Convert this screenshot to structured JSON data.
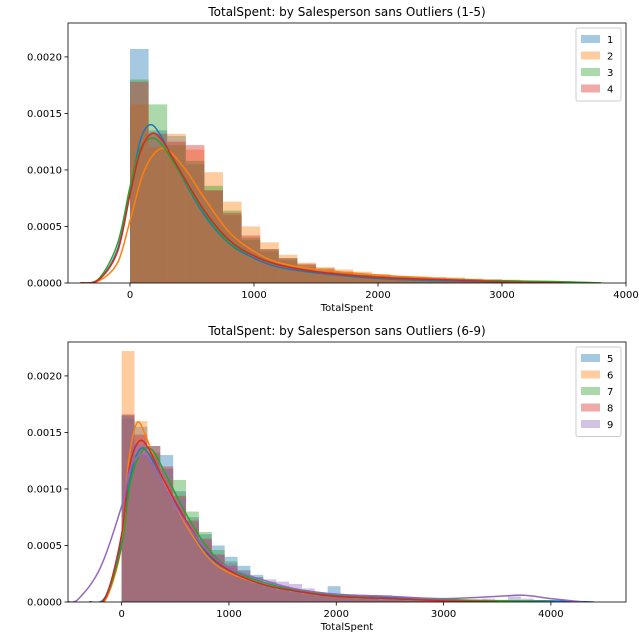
{
  "chart_data": [
    {
      "type": "histogram",
      "title": "TotalSpent: by Salesperson sans Outliers (1-5)",
      "xlabel": "TotalSpent",
      "ylabel": "",
      "xlim": [
        -500,
        4000
      ],
      "ylim": [
        0,
        0.0023
      ],
      "xticks": [
        0,
        1000,
        2000,
        3000,
        4000
      ],
      "yticks": [
        0.0,
        0.0005,
        0.001,
        0.0015,
        0.002
      ],
      "ytick_labels": [
        "0.0000",
        "0.0005",
        "0.0010",
        "0.0015",
        "0.0020"
      ],
      "legend_position": "top-right",
      "grid": false,
      "bin_width": 150,
      "series": [
        {
          "name": "1",
          "color": "#1f77b4",
          "bin_start": 0,
          "densities": [
            0.00207,
            0.00135,
            0.0013,
            0.00105,
            0.00082,
            0.0006,
            0.00038,
            0.00028,
            0.0002,
            0.00014,
            0.0001,
            9e-05,
            7e-05,
            6e-05,
            5e-05,
            5e-05,
            4e-05,
            3e-05,
            3e-05,
            3e-05,
            2e-05,
            2e-05,
            1e-05,
            1e-05
          ],
          "kde": [
            [
              -400,
              0.0
            ],
            [
              -250,
              3e-05
            ],
            [
              -100,
              0.0003
            ],
            [
              0,
              0.0008
            ],
            [
              80,
              0.00125
            ],
            [
              160,
              0.0014
            ],
            [
              250,
              0.0013
            ],
            [
              400,
              0.00098
            ],
            [
              600,
              0.0006
            ],
            [
              800,
              0.00035
            ],
            [
              1000,
              0.00022
            ],
            [
              1200,
              0.00014
            ],
            [
              1500,
              9e-05
            ],
            [
              2000,
              4e-05
            ],
            [
              2500,
              2e-05
            ],
            [
              3000,
              1e-05
            ],
            [
              3500,
              0.0
            ]
          ]
        },
        {
          "name": "2",
          "color": "#ff7f0e",
          "bin_start": 0,
          "densities": [
            0.00158,
            0.0012,
            0.00132,
            0.00118,
            0.00098,
            0.00072,
            0.0005,
            0.00036,
            0.00025,
            0.00018,
            0.00014,
            0.00012,
            0.0001,
            8e-05,
            6e-05,
            6e-05,
            5e-05,
            5e-05,
            4e-05,
            3e-05,
            3e-05,
            2e-05,
            2e-05,
            1e-05
          ],
          "kde": [
            [
              -400,
              0.0
            ],
            [
              -250,
              2e-05
            ],
            [
              -100,
              0.00018
            ],
            [
              0,
              0.00055
            ],
            [
              100,
              0.00095
            ],
            [
              200,
              0.00115
            ],
            [
              300,
              0.00118
            ],
            [
              450,
              0.001
            ],
            [
              600,
              0.00075
            ],
            [
              800,
              0.00045
            ],
            [
              1000,
              0.00028
            ],
            [
              1200,
              0.00018
            ],
            [
              1500,
              0.00012
            ],
            [
              2000,
              7e-05
            ],
            [
              2500,
              4e-05
            ],
            [
              3000,
              2e-05
            ],
            [
              3500,
              1e-05
            ],
            [
              3800,
              0.0
            ]
          ]
        },
        {
          "name": "3",
          "color": "#2ca02c",
          "bin_start": 0,
          "densities": [
            0.0018,
            0.00158,
            0.00122,
            0.00108,
            0.00086,
            0.00064,
            0.0004,
            0.0003,
            0.00022,
            0.00016,
            0.00012,
            0.0001,
            8e-05,
            7e-05,
            6e-05,
            5e-05,
            4e-05,
            4e-05,
            3e-05,
            3e-05,
            2e-05,
            2e-05,
            2e-05,
            1e-05
          ],
          "kde": [
            [
              -400,
              0.0
            ],
            [
              -250,
              4e-05
            ],
            [
              -100,
              0.00035
            ],
            [
              0,
              0.00085
            ],
            [
              80,
              0.00118
            ],
            [
              170,
              0.00128
            ],
            [
              260,
              0.00122
            ],
            [
              400,
              0.00098
            ],
            [
              600,
              0.00062
            ],
            [
              800,
              0.00036
            ],
            [
              1000,
              0.00024
            ],
            [
              1200,
              0.00016
            ],
            [
              1500,
              0.0001
            ],
            [
              2000,
              5e-05
            ],
            [
              2500,
              3e-05
            ],
            [
              3000,
              2e-05
            ],
            [
              3500,
              1e-05
            ],
            [
              3800,
              0.0
            ]
          ]
        },
        {
          "name": "4",
          "color": "#d62728",
          "bin_start": 0,
          "densities": [
            0.00178,
            0.00132,
            0.00125,
            0.00122,
            0.00082,
            0.00062,
            0.00042,
            0.0003,
            0.00022,
            0.00017,
            0.00013,
            0.0001,
            8e-05,
            7e-05,
            6e-05,
            5e-05,
            5e-05,
            4e-05,
            3e-05,
            3e-05,
            2e-05,
            2e-05,
            1e-05,
            1e-05
          ],
          "kde": [
            [
              -400,
              0.0
            ],
            [
              -250,
              3e-05
            ],
            [
              -100,
              0.00028
            ],
            [
              0,
              0.00078
            ],
            [
              80,
              0.00115
            ],
            [
              170,
              0.00132
            ],
            [
              260,
              0.00126
            ],
            [
              400,
              0.001
            ],
            [
              600,
              0.00064
            ],
            [
              800,
              0.00038
            ],
            [
              1000,
              0.00024
            ],
            [
              1200,
              0.00016
            ],
            [
              1500,
              0.0001
            ],
            [
              2000,
              5e-05
            ],
            [
              2500,
              3e-05
            ],
            [
              3000,
              1e-05
            ],
            [
              3500,
              0.0
            ]
          ]
        }
      ]
    },
    {
      "type": "histogram",
      "title": "TotalSpent: by Salesperson sans Outliers (6-9)",
      "xlabel": "TotalSpent",
      "ylabel": "",
      "xlim": [
        -500,
        4700
      ],
      "ylim": [
        0,
        0.0023
      ],
      "xticks": [
        0,
        1000,
        2000,
        3000,
        4000
      ],
      "yticks": [
        0.0,
        0.0005,
        0.001,
        0.0015,
        0.002
      ],
      "ytick_labels": [
        "0.0000",
        "0.0005",
        "0.0010",
        "0.0015",
        "0.0020"
      ],
      "legend_position": "top-right",
      "grid": false,
      "bin_width": 120,
      "series": [
        {
          "name": "5",
          "color": "#1f77b4",
          "bin_start": 0,
          "densities": [
            0.00162,
            0.00155,
            0.00138,
            0.0013,
            0.00098,
            0.00075,
            0.0006,
            0.0005,
            0.0004,
            0.00032,
            0.00024,
            0.00018,
            0.00014,
            0.00011,
            9e-05,
            8e-05,
            0.00014,
            6e-05,
            4e-05,
            6e-05,
            4e-05,
            5e-05,
            3e-05,
            2e-05,
            3e-05,
            3e-05,
            2e-05,
            1e-05,
            1e-05,
            1e-05,
            1e-05,
            1e-05,
            1e-05,
            1e-05,
            1e-05
          ],
          "kde": [
            [
              -300,
              0.0
            ],
            [
              -150,
              5e-05
            ],
            [
              0,
              0.00055
            ],
            [
              80,
              0.0011
            ],
            [
              170,
              0.00135
            ],
            [
              260,
              0.0013
            ],
            [
              400,
              0.00105
            ],
            [
              600,
              0.0007
            ],
            [
              800,
              0.00042
            ],
            [
              1000,
              0.00028
            ],
            [
              1300,
              0.00016
            ],
            [
              1600,
              0.0001
            ],
            [
              2000,
              6e-05
            ],
            [
              2500,
              4e-05
            ],
            [
              3000,
              2e-05
            ],
            [
              3500,
              1e-05
            ],
            [
              4000,
              1e-05
            ],
            [
              4400,
              0.0
            ]
          ]
        },
        {
          "name": "6",
          "color": "#ff7f0e",
          "bin_start": 0,
          "densities": [
            0.00222,
            0.0016,
            0.00128,
            0.00108,
            0.00082,
            0.00066,
            0.00052,
            0.00038,
            0.0003,
            0.00022,
            0.00016,
            0.00012,
            0.0001,
            8e-05,
            7e-05,
            6e-05,
            5e-05,
            4e-05,
            4e-05,
            3e-05,
            3e-05,
            2e-05,
            2e-05,
            2e-05,
            1e-05
          ],
          "kde": [
            [
              -300,
              0.0
            ],
            [
              -150,
              2e-05
            ],
            [
              0,
              0.0005
            ],
            [
              60,
              0.0012
            ],
            [
              140,
              0.00158
            ],
            [
              220,
              0.00148
            ],
            [
              320,
              0.00122
            ],
            [
              450,
              0.00095
            ],
            [
              600,
              0.00068
            ],
            [
              800,
              0.0004
            ],
            [
              1000,
              0.00026
            ],
            [
              1300,
              0.00016
            ],
            [
              1600,
              0.0001
            ],
            [
              2000,
              6e-05
            ],
            [
              2500,
              3e-05
            ],
            [
              3000,
              2e-05
            ],
            [
              3500,
              1e-05
            ],
            [
              4000,
              0.0
            ]
          ]
        },
        {
          "name": "7",
          "color": "#2ca02c",
          "bin_start": 0,
          "densities": [
            0.00165,
            0.0013,
            0.00132,
            0.00118,
            0.00108,
            0.0008,
            0.00062,
            0.00046,
            0.00036,
            0.00028,
            0.00022,
            0.00017,
            0.00014,
            0.00011,
            8e-05,
            6e-05,
            5e-05,
            4e-05,
            3e-05,
            3e-05,
            2e-05,
            2e-05,
            2e-05,
            1e-05,
            1e-05
          ],
          "kde": [
            [
              -300,
              0.0
            ],
            [
              -150,
              4e-05
            ],
            [
              0,
              0.0005
            ],
            [
              80,
              0.00105
            ],
            [
              180,
              0.00132
            ],
            [
              280,
              0.00135
            ],
            [
              400,
              0.00115
            ],
            [
              600,
              0.00078
            ],
            [
              800,
              0.00048
            ],
            [
              1000,
              0.0003
            ],
            [
              1300,
              0.00018
            ],
            [
              1600,
              0.00011
            ],
            [
              2000,
              6e-05
            ],
            [
              2500,
              3e-05
            ],
            [
              3000,
              2e-05
            ],
            [
              3500,
              1e-05
            ],
            [
              4000,
              0.0
            ]
          ]
        },
        {
          "name": "8",
          "color": "#d62728",
          "bin_start": 0,
          "densities": [
            0.00166,
            0.00148,
            0.00138,
            0.0012,
            0.00094,
            0.00072,
            0.00056,
            0.00042,
            0.00032,
            0.00024,
            0.00018,
            0.00014,
            0.00011,
            9e-05,
            7e-05,
            6e-05,
            5e-05,
            4e-05,
            3e-05,
            3e-05,
            2e-05,
            2e-05,
            1e-05,
            1e-05
          ],
          "kde": [
            [
              -300,
              0.0
            ],
            [
              -150,
              4e-05
            ],
            [
              0,
              0.0006
            ],
            [
              70,
              0.00118
            ],
            [
              160,
              0.00142
            ],
            [
              250,
              0.00136
            ],
            [
              380,
              0.0011
            ],
            [
              600,
              0.00072
            ],
            [
              800,
              0.00044
            ],
            [
              1000,
              0.00028
            ],
            [
              1300,
              0.00016
            ],
            [
              1600,
              0.0001
            ],
            [
              2000,
              5e-05
            ],
            [
              2500,
              3e-05
            ],
            [
              3000,
              1e-05
            ],
            [
              3500,
              0.0
            ]
          ]
        },
        {
          "name": "9",
          "color": "#9467bd",
          "bin_start": 0,
          "densities": [
            0.00165,
            0.0014,
            0.00128,
            0.00118,
            0.00092,
            0.0007,
            0.00055,
            0.00042,
            0.00034,
            0.00028,
            0.00022,
            0.0002,
            0.00018,
            0.00016,
            0.00012,
            8e-05,
            6e-05,
            5e-05,
            4e-05,
            4e-05,
            6e-05,
            3e-05,
            4e-05,
            3e-05,
            2e-05,
            2e-05,
            2e-05,
            2e-05,
            3e-05,
            2e-05,
            5e-05,
            3e-05,
            1e-05,
            1e-05
          ],
          "kde": [
            [
              -500,
              0.0
            ],
            [
              -400,
              3e-05
            ],
            [
              -200,
              0.0003
            ],
            [
              0,
              0.00085
            ],
            [
              80,
              0.00118
            ],
            [
              170,
              0.0013
            ],
            [
              260,
              0.00125
            ],
            [
              400,
              0.00102
            ],
            [
              600,
              0.0007
            ],
            [
              800,
              0.00045
            ],
            [
              1000,
              0.0003
            ],
            [
              1300,
              0.0002
            ],
            [
              1600,
              0.00012
            ],
            [
              2000,
              7e-05
            ],
            [
              2500,
              5e-05
            ],
            [
              3000,
              3e-05
            ],
            [
              3500,
              5e-05
            ],
            [
              3750,
              6e-05
            ],
            [
              4000,
              3e-05
            ],
            [
              4300,
              0.0
            ]
          ]
        }
      ]
    }
  ]
}
